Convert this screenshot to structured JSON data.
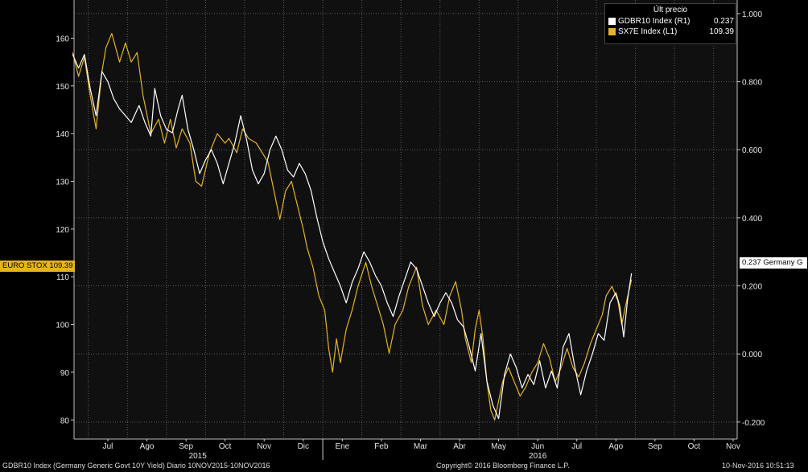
{
  "legend": {
    "header": "Últ precio",
    "items": [
      {
        "name": "GDBR10 Index  (R1)",
        "value": "0.237",
        "color": "#ffffff"
      },
      {
        "name": "SX7E Index  (L1)",
        "value": "109.39",
        "color": "#e6b422"
      }
    ]
  },
  "tags": {
    "left": "EURO STOX 109.39",
    "right": "0.237 Germany G"
  },
  "footer": {
    "left": "GDBR10 Index (Germany Generic Govt 10Y Yield)  Diario 10NOV2015-10NOV2016",
    "center": "Copyright© 2016 Bloomberg Finance L.P.",
    "right": "10-Nov-2016 10:51:13"
  },
  "chart_data": {
    "type": "line",
    "x_months": [
      "Jul",
      "Ago",
      "Sep",
      "Oct",
      "Nov",
      "Dic",
      "Ene",
      "Feb",
      "Mar",
      "Abr",
      "May",
      "Jun",
      "Jul",
      "Ago",
      "Sep",
      "Oct",
      "Nov"
    ],
    "x_years": [
      "2015",
      "2016"
    ],
    "left_axis": {
      "ticks": [
        "80",
        "90",
        "100",
        "110",
        "120",
        "130",
        "140",
        "150",
        "160"
      ],
      "ylim": [
        76,
        168
      ]
    },
    "right_axis": {
      "ticks": [
        "-0.200",
        "0.000",
        "0.200",
        "0.400",
        "0.600",
        "0.800",
        "1.000"
      ],
      "ylim": [
        -0.25,
        1.04
      ]
    },
    "grid": true,
    "series": [
      {
        "name": "SX7E Index  (L1)",
        "axis": "left",
        "color": "#e6b422",
        "values": [
          [
            0.0,
            157
          ],
          [
            0.15,
            152
          ],
          [
            0.3,
            156
          ],
          [
            0.45,
            148
          ],
          [
            0.6,
            141
          ],
          [
            0.75,
            153
          ],
          [
            0.85,
            158
          ],
          [
            1.0,
            161
          ],
          [
            1.2,
            155
          ],
          [
            1.35,
            159
          ],
          [
            1.5,
            155
          ],
          [
            1.65,
            157
          ],
          [
            1.8,
            148
          ],
          [
            2.0,
            140
          ],
          [
            2.2,
            143
          ],
          [
            2.35,
            138
          ],
          [
            2.5,
            143
          ],
          [
            2.65,
            137
          ],
          [
            2.8,
            141
          ],
          [
            3.0,
            138
          ],
          [
            3.15,
            130
          ],
          [
            3.3,
            129
          ],
          [
            3.5,
            136
          ],
          [
            3.7,
            140
          ],
          [
            3.9,
            138
          ],
          [
            4.0,
            139
          ],
          [
            4.2,
            136
          ],
          [
            4.35,
            141
          ],
          [
            4.5,
            139
          ],
          [
            4.7,
            138
          ],
          [
            4.85,
            136
          ],
          [
            5.0,
            134
          ],
          [
            5.15,
            128
          ],
          [
            5.3,
            122
          ],
          [
            5.45,
            128
          ],
          [
            5.6,
            130
          ],
          [
            5.75,
            125
          ],
          [
            5.9,
            120
          ],
          [
            6.0,
            116
          ],
          [
            6.15,
            112
          ],
          [
            6.3,
            106
          ],
          [
            6.45,
            103
          ],
          [
            6.55,
            95
          ],
          [
            6.65,
            90
          ],
          [
            6.75,
            97
          ],
          [
            6.85,
            92
          ],
          [
            7.0,
            99
          ],
          [
            7.15,
            103
          ],
          [
            7.3,
            108
          ],
          [
            7.5,
            113
          ],
          [
            7.65,
            108
          ],
          [
            7.8,
            104
          ],
          [
            7.95,
            100
          ],
          [
            8.1,
            94
          ],
          [
            8.25,
            100
          ],
          [
            8.45,
            103
          ],
          [
            8.6,
            108
          ],
          [
            8.8,
            112
          ],
          [
            8.95,
            104
          ],
          [
            9.1,
            100
          ],
          [
            9.3,
            103
          ],
          [
            9.5,
            100
          ],
          [
            9.65,
            106
          ],
          [
            9.8,
            109
          ],
          [
            9.95,
            103
          ],
          [
            10.05,
            97
          ],
          [
            10.2,
            92
          ],
          [
            10.3,
            99
          ],
          [
            10.4,
            103
          ],
          [
            10.5,
            97
          ],
          [
            10.6,
            88
          ],
          [
            10.7,
            82
          ],
          [
            10.8,
            80
          ],
          [
            10.9,
            84
          ],
          [
            11.0,
            88
          ],
          [
            11.15,
            91
          ],
          [
            11.3,
            88
          ],
          [
            11.45,
            85
          ],
          [
            11.6,
            87
          ],
          [
            11.75,
            90
          ],
          [
            11.9,
            92
          ],
          [
            12.05,
            96
          ],
          [
            12.2,
            93
          ],
          [
            12.35,
            88
          ],
          [
            12.5,
            91
          ],
          [
            12.65,
            95
          ],
          [
            12.8,
            91
          ],
          [
            12.95,
            89
          ],
          [
            13.1,
            92
          ],
          [
            13.25,
            96
          ],
          [
            13.4,
            99
          ],
          [
            13.55,
            102
          ],
          [
            13.65,
            106
          ],
          [
            13.8,
            108
          ],
          [
            13.95,
            105
          ],
          [
            14.05,
            100
          ],
          [
            14.15,
            104
          ],
          [
            14.3,
            109.39
          ]
        ]
      },
      {
        "name": "GDBR10 Index  (R1)",
        "axis": "right",
        "color": "#ffffff",
        "values": [
          [
            0.0,
            0.88
          ],
          [
            0.15,
            0.84
          ],
          [
            0.3,
            0.88
          ],
          [
            0.45,
            0.78
          ],
          [
            0.6,
            0.7
          ],
          [
            0.75,
            0.83
          ],
          [
            0.9,
            0.8
          ],
          [
            1.05,
            0.75
          ],
          [
            1.2,
            0.72
          ],
          [
            1.35,
            0.7
          ],
          [
            1.5,
            0.68
          ],
          [
            1.7,
            0.73
          ],
          [
            1.85,
            0.68
          ],
          [
            2.0,
            0.64
          ],
          [
            2.1,
            0.78
          ],
          [
            2.25,
            0.7
          ],
          [
            2.4,
            0.66
          ],
          [
            2.55,
            0.65
          ],
          [
            2.7,
            0.72
          ],
          [
            2.8,
            0.76
          ],
          [
            2.95,
            0.66
          ],
          [
            3.1,
            0.6
          ],
          [
            3.25,
            0.53
          ],
          [
            3.4,
            0.57
          ],
          [
            3.55,
            0.6
          ],
          [
            3.7,
            0.56
          ],
          [
            3.85,
            0.5
          ],
          [
            4.0,
            0.56
          ],
          [
            4.15,
            0.62
          ],
          [
            4.3,
            0.7
          ],
          [
            4.45,
            0.63
          ],
          [
            4.6,
            0.54
          ],
          [
            4.75,
            0.5
          ],
          [
            4.9,
            0.53
          ],
          [
            5.05,
            0.6
          ],
          [
            5.2,
            0.64
          ],
          [
            5.35,
            0.6
          ],
          [
            5.5,
            0.54
          ],
          [
            5.65,
            0.52
          ],
          [
            5.8,
            0.56
          ],
          [
            5.95,
            0.53
          ],
          [
            6.1,
            0.48
          ],
          [
            6.25,
            0.4
          ],
          [
            6.4,
            0.33
          ],
          [
            6.55,
            0.28
          ],
          [
            6.7,
            0.24
          ],
          [
            6.85,
            0.2
          ],
          [
            7.0,
            0.15
          ],
          [
            7.15,
            0.21
          ],
          [
            7.3,
            0.25
          ],
          [
            7.45,
            0.3
          ],
          [
            7.6,
            0.27
          ],
          [
            7.75,
            0.23
          ],
          [
            7.9,
            0.2
          ],
          [
            8.05,
            0.15
          ],
          [
            8.2,
            0.11
          ],
          [
            8.35,
            0.17
          ],
          [
            8.5,
            0.22
          ],
          [
            8.65,
            0.27
          ],
          [
            8.8,
            0.25
          ],
          [
            8.95,
            0.2
          ],
          [
            9.1,
            0.15
          ],
          [
            9.25,
            0.11
          ],
          [
            9.4,
            0.15
          ],
          [
            9.55,
            0.18
          ],
          [
            9.7,
            0.15
          ],
          [
            9.85,
            0.1
          ],
          [
            10.0,
            0.08
          ],
          [
            10.15,
            0.02
          ],
          [
            10.3,
            -0.05
          ],
          [
            10.45,
            0.06
          ],
          [
            10.6,
            -0.08
          ],
          [
            10.75,
            -0.15
          ],
          [
            10.9,
            -0.19
          ],
          [
            11.05,
            -0.06
          ],
          [
            11.2,
            0.0
          ],
          [
            11.35,
            -0.04
          ],
          [
            11.5,
            -0.1
          ],
          [
            11.65,
            -0.06
          ],
          [
            11.8,
            -0.09
          ],
          [
            11.95,
            -0.02
          ],
          [
            12.1,
            -0.1
          ],
          [
            12.25,
            -0.05
          ],
          [
            12.4,
            -0.1
          ],
          [
            12.55,
            0.02
          ],
          [
            12.7,
            0.06
          ],
          [
            12.85,
            -0.04
          ],
          [
            13.0,
            -0.12
          ],
          [
            13.15,
            -0.05
          ],
          [
            13.3,
            0.0
          ],
          [
            13.45,
            0.06
          ],
          [
            13.6,
            0.04
          ],
          [
            13.75,
            0.15
          ],
          [
            13.9,
            0.18
          ],
          [
            14.0,
            0.14
          ],
          [
            14.1,
            0.05
          ],
          [
            14.2,
            0.16
          ],
          [
            14.3,
            0.237
          ]
        ]
      }
    ]
  }
}
